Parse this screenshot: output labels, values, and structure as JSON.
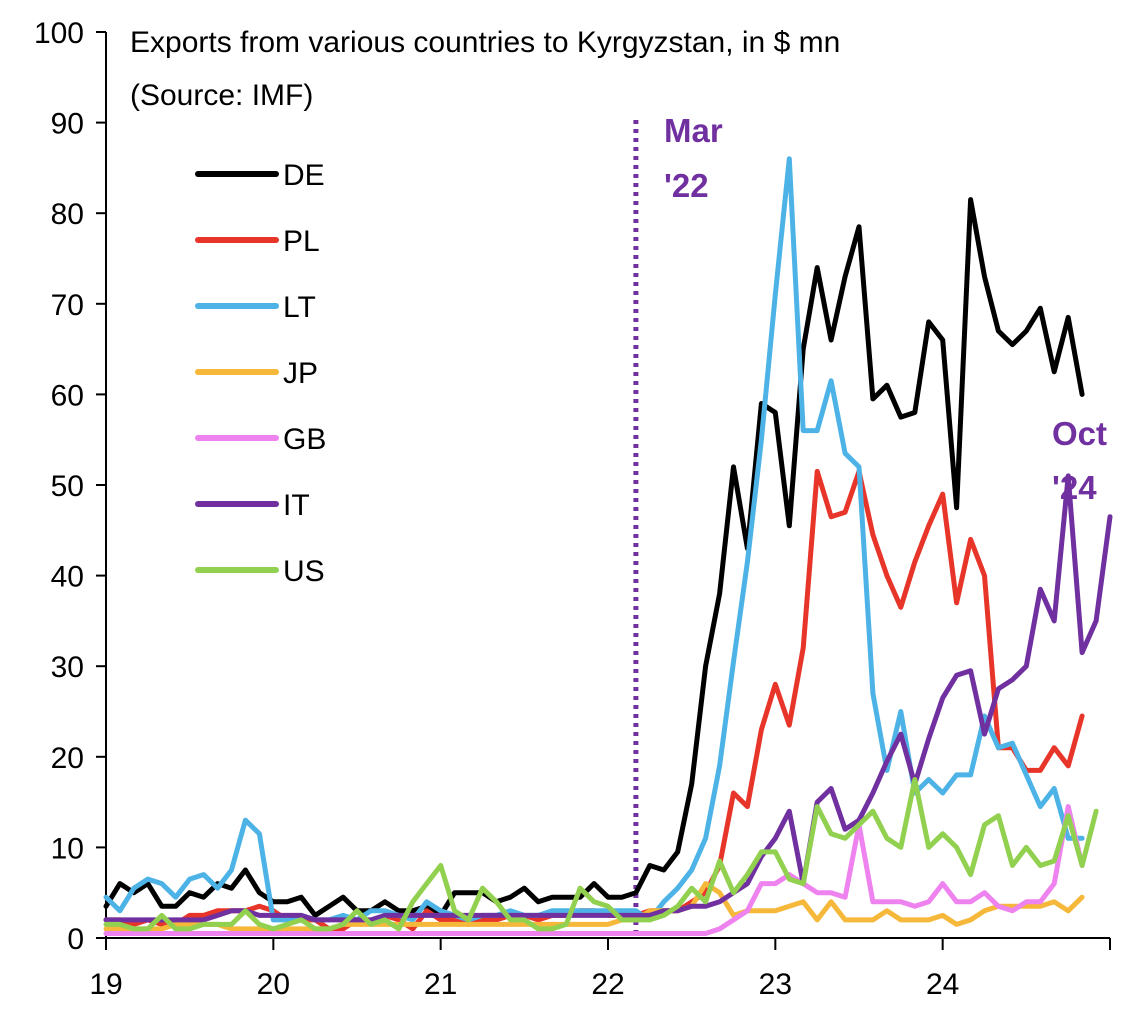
{
  "chart_data": {
    "type": "line",
    "title": "Exports from various countries to Kyrgyzstan, in $ mn",
    "subtitle": "(Source: IMF)",
    "xlabel": "",
    "ylabel": "",
    "ylim": [
      0,
      100
    ],
    "yticks": [
      0,
      10,
      20,
      30,
      40,
      50,
      60,
      70,
      80,
      90,
      100
    ],
    "xlim": [
      2019,
      2025
    ],
    "xticks": [
      {
        "value": 2019,
        "label": "19"
      },
      {
        "value": 2020,
        "label": "20"
      },
      {
        "value": 2021,
        "label": "21"
      },
      {
        "value": 2022,
        "label": "22"
      },
      {
        "value": 2023,
        "label": "23"
      },
      {
        "value": 2024,
        "label": "24"
      }
    ],
    "grid": false,
    "legend_position": "top-left",
    "x_start": "2019-01",
    "x_frequency": "monthly",
    "series": [
      {
        "name": "DE",
        "color": "#000000",
        "values": [
          3.5,
          6,
          5,
          6,
          3.5,
          3.5,
          5,
          4.5,
          6,
          5.5,
          7.5,
          5,
          4,
          4,
          4.5,
          2.5,
          3.5,
          4.5,
          3,
          3,
          4,
          3,
          3,
          3.5,
          2.5,
          5,
          5,
          5,
          4,
          4.5,
          5.5,
          4,
          4.5,
          4.5,
          4.5,
          6,
          4.5,
          4.5,
          5,
          8,
          7.5,
          9.5,
          17,
          30,
          38,
          52,
          43,
          59,
          58,
          45.5,
          65,
          74,
          66,
          73,
          78.5,
          59.5,
          61,
          57.5,
          58,
          68,
          66,
          47.5,
          81.5,
          73,
          67,
          65.5,
          67,
          69.5,
          62.5,
          68.5,
          60
        ]
      },
      {
        "name": "PL",
        "color": "#e8352a",
        "values": [
          2,
          2,
          1.5,
          2,
          1.5,
          1.5,
          2.5,
          2.5,
          3,
          3,
          3,
          3.5,
          3,
          2,
          2,
          2,
          1,
          1,
          2,
          1.5,
          2.5,
          2,
          1,
          3,
          2,
          2,
          1.5,
          2,
          2,
          2.5,
          2.5,
          2,
          2.5,
          2.5,
          3,
          3,
          2.5,
          2.5,
          2.5,
          3,
          3,
          3,
          4,
          5,
          8,
          16,
          14.5,
          23,
          28,
          23.5,
          32,
          51.5,
          46.5,
          47,
          51.5,
          44.5,
          40,
          36.5,
          41.5,
          45.5,
          49,
          37,
          44,
          40,
          21,
          21,
          18.5,
          18.5,
          21,
          19,
          24.5
        ]
      },
      {
        "name": "LT",
        "color": "#4db3e6",
        "values": [
          4.5,
          3,
          5.5,
          6.5,
          6,
          4.5,
          6.5,
          7,
          5.5,
          7.5,
          13,
          11.5,
          2,
          2,
          2.5,
          2,
          2,
          2.5,
          2,
          3,
          3,
          2.5,
          2,
          4,
          3,
          2.5,
          2,
          2.5,
          2.5,
          3,
          2.5,
          2.5,
          3,
          3,
          3,
          3,
          3,
          3,
          3,
          2,
          4,
          5.5,
          7.5,
          11,
          19,
          30.5,
          41.5,
          55,
          71,
          86,
          56,
          56,
          61.5,
          53.5,
          52,
          27,
          18.5,
          25,
          16,
          17.5,
          16,
          18,
          18,
          24.5,
          21,
          21.5,
          18,
          14.5,
          16.5,
          11,
          11
        ]
      },
      {
        "name": "JP",
        "color": "#f5b83a",
        "values": [
          1,
          1,
          1,
          1,
          1,
          1.5,
          1.5,
          1.5,
          1.5,
          1,
          1,
          1,
          1,
          1,
          1,
          1,
          1,
          1.5,
          1.5,
          1.5,
          1.5,
          1.5,
          1.5,
          1.5,
          1.5,
          1.5,
          1.5,
          1.5,
          1.5,
          1.5,
          1.5,
          1.5,
          1.5,
          1.5,
          1.5,
          1.5,
          1.5,
          2,
          2,
          3,
          3,
          3,
          3.5,
          6,
          5,
          2.5,
          3,
          3,
          3,
          3.5,
          4,
          2,
          4,
          2,
          2,
          2,
          3,
          2,
          2,
          2,
          2.5,
          1.5,
          2,
          3,
          3.5,
          3.5,
          3.5,
          3.5,
          4,
          3,
          4.5
        ]
      },
      {
        "name": "GB",
        "color": "#ee82ee",
        "values": [
          0.5,
          0.5,
          0.5,
          0.5,
          0.5,
          0.5,
          0.5,
          0.5,
          0.5,
          0.5,
          0.5,
          0.5,
          0.5,
          0.5,
          0.5,
          0.5,
          0.5,
          0.5,
          0.5,
          0.5,
          0.5,
          0.5,
          0.5,
          0.5,
          0.5,
          0.5,
          0.5,
          0.5,
          0.5,
          0.5,
          0.5,
          0.5,
          0.5,
          0.5,
          0.5,
          0.5,
          0.5,
          0.5,
          0.5,
          0.5,
          0.5,
          0.5,
          0.5,
          0.5,
          1,
          2,
          3,
          6,
          6,
          7,
          6,
          5,
          5,
          4.5,
          12.5,
          4,
          4,
          4,
          3.5,
          4,
          6,
          4,
          4,
          5,
          3.5,
          3,
          4,
          4,
          6,
          14.5,
          8
        ]
      },
      {
        "name": "IT",
        "color": "#7030a0",
        "values": [
          2,
          2,
          2,
          2,
          2,
          2,
          2,
          2,
          2.5,
          3,
          3,
          2.5,
          2.5,
          2.5,
          2.5,
          2,
          2,
          2,
          2,
          2,
          2.5,
          2.5,
          2.5,
          2.5,
          2.5,
          2.5,
          2.5,
          2.5,
          2.5,
          2.5,
          2.5,
          2.5,
          2.5,
          2.5,
          2.5,
          2.5,
          2.5,
          2.5,
          2.5,
          2.5,
          3,
          3,
          3.5,
          3.5,
          4,
          5,
          6,
          9,
          11,
          14,
          6,
          15,
          16.5,
          12,
          13,
          16,
          19.5,
          22.5,
          17,
          22,
          26.5,
          29,
          29.5,
          22.5,
          27.5,
          28.5,
          30,
          38.5,
          35,
          51,
          31.5,
          35,
          46.5
        ]
      },
      {
        "name": "US",
        "color": "#92d050",
        "values": [
          1.5,
          1.5,
          1,
          1,
          2.5,
          1,
          1,
          1.5,
          1.5,
          1.5,
          3,
          1.5,
          1,
          1.5,
          2,
          1,
          1,
          1.5,
          3,
          1.5,
          2,
          1,
          4,
          6,
          8,
          3,
          2,
          5.5,
          4,
          2,
          2,
          1,
          1,
          1.5,
          5.5,
          4,
          3.5,
          2,
          2,
          2,
          2.5,
          3.5,
          5.5,
          4,
          8.5,
          5,
          7,
          9.5,
          9.5,
          6.5,
          6,
          14.5,
          11.5,
          11,
          12.5,
          14,
          11,
          10,
          17.5,
          10,
          11.5,
          10,
          7,
          12.5,
          13.5,
          8,
          10,
          8,
          8.5,
          13.5,
          8,
          14
        ]
      }
    ],
    "annotations": [
      {
        "text_line1": "Mar",
        "text_line2": "'22",
        "x": "2022-03",
        "color": "#7030a0",
        "style": "dotted vertical line"
      },
      {
        "text_line1": "Oct",
        "text_line2": "'24",
        "x": "2024-10",
        "color": "#7030a0"
      }
    ]
  }
}
